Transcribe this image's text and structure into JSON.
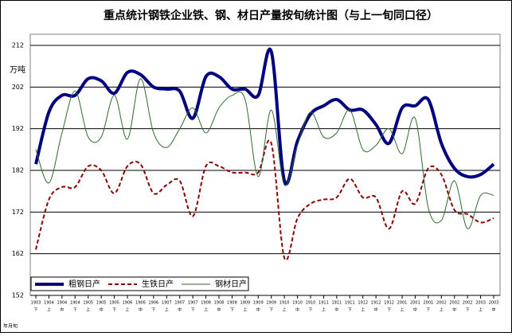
{
  "chart_data": {
    "type": "line",
    "title": "重点统计钢铁企业铁、钢、材日产量按旬统计图（与上一旬同口径）",
    "y_unit": "万吨",
    "x_axis_label": "年月旬",
    "categories": [
      "1903",
      "1904",
      "1904",
      "1904",
      "1905",
      "1905",
      "1905",
      "1906",
      "1906",
      "1906",
      "1907",
      "1907",
      "1907",
      "1908",
      "1908",
      "1908",
      "1909",
      "1909",
      "1909",
      "1910",
      "1910",
      "1910",
      "1911",
      "1911",
      "1911",
      "1912",
      "1912",
      "1912",
      "2001",
      "2001",
      "2001",
      "2002",
      "2002",
      "2002",
      "2003",
      "2003"
    ],
    "sub_labels": [
      "下",
      "上",
      "中",
      "下",
      "上",
      "中",
      "下",
      "上",
      "中",
      "下",
      "上",
      "中",
      "下",
      "上",
      "中",
      "下",
      "上",
      "中",
      "下",
      "上",
      "中",
      "下",
      "上",
      "中",
      "下",
      "上",
      "中",
      "下",
      "上",
      "中",
      "下",
      "上",
      "中",
      "下",
      "上",
      "中"
    ],
    "ylim": [
      152,
      212
    ],
    "yticks": [
      152,
      162,
      172,
      182,
      192,
      202,
      212
    ],
    "grid": true,
    "legend": "bottom-left",
    "series": [
      {
        "name": "粗钢日产",
        "color": "#000080",
        "style": "solid-thick",
        "values": [
          183.5,
          196,
          200,
          200,
          204,
          203.5,
          200.5,
          205.5,
          205,
          202,
          201.5,
          201,
          194.5,
          204.5,
          204.5,
          201.5,
          201.5,
          200,
          210.5,
          179.5,
          189,
          195.5,
          197.5,
          199,
          196.5,
          196.5,
          193,
          188.5,
          197,
          197.5,
          199,
          188.5,
          182.5,
          180.5,
          181,
          183.5
        ]
      },
      {
        "name": "生铁日产",
        "color": "#8b0000",
        "style": "dashed",
        "values": [
          163,
          175,
          178,
          178,
          183,
          182,
          176.5,
          183,
          183.5,
          176.5,
          178.5,
          179.5,
          171,
          183,
          183,
          181.5,
          181.5,
          181.5,
          188.5,
          161,
          170.5,
          174,
          175,
          175.5,
          180,
          175.5,
          175.5,
          168,
          177,
          174,
          182.5,
          181,
          172.5,
          171.5,
          169.5,
          170.5
        ]
      },
      {
        "name": "钢材日产",
        "color": "#2e6b2e",
        "style": "thin",
        "values": [
          187,
          179,
          191,
          201,
          190,
          190,
          200,
          189.5,
          204,
          191,
          187.5,
          192,
          197,
          191,
          197,
          200,
          199,
          180.5,
          196.5,
          178.5,
          188,
          196,
          190,
          191,
          196.5,
          187,
          188,
          192,
          186,
          194.5,
          173,
          170,
          179.5,
          168,
          176,
          176
        ]
      }
    ]
  }
}
